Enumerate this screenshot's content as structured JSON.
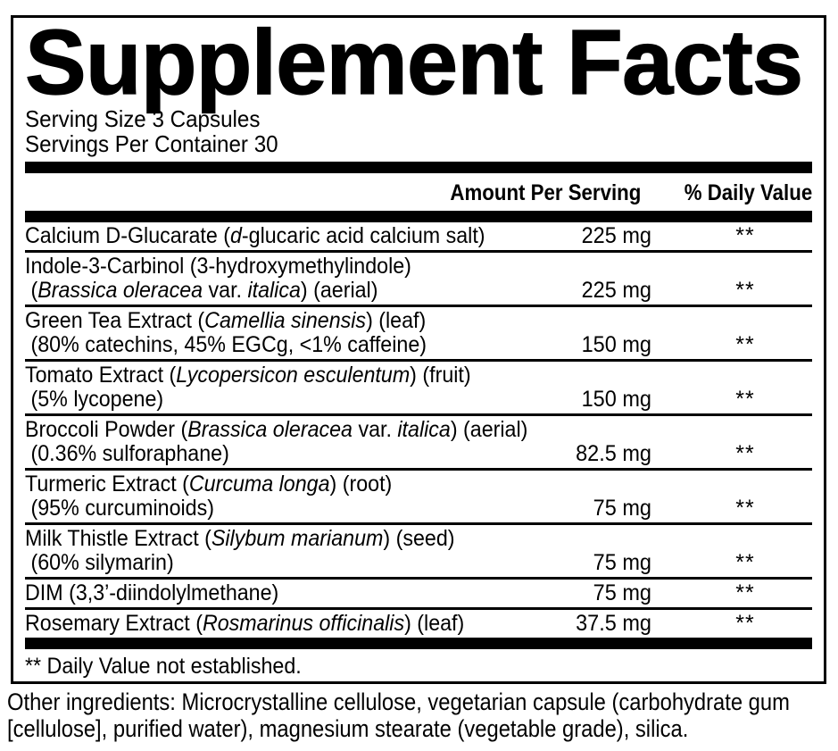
{
  "panel": {
    "title": "Supplement Facts",
    "serving": {
      "size": "Serving Size 3 Capsules",
      "per_container": "Servings Per Container 30"
    },
    "header": {
      "amount": "Amount Per Serving",
      "daily_value": "% Daily Value"
    },
    "rows": [
      {
        "lines": [
          [
            {
              "t": "Calcium D-Glucarate ("
            },
            {
              "t": "d",
              "it": true
            },
            {
              "t": "-glucaric acid calcium salt)"
            }
          ]
        ],
        "amount": "225 mg",
        "dv": "**"
      },
      {
        "lines": [
          [
            {
              "t": "Indole-3-Carbinol (3-hydroxymethylindole)"
            }
          ],
          [
            {
              "t": "("
            },
            {
              "t": "Brassica oleracea",
              "it": true
            },
            {
              "t": " var. "
            },
            {
              "t": "italica",
              "it": true
            },
            {
              "t": ") (aerial)"
            }
          ]
        ],
        "amount": "225 mg",
        "dv": "**"
      },
      {
        "lines": [
          [
            {
              "t": "Green Tea Extract ("
            },
            {
              "t": "Camellia sinensis",
              "it": true
            },
            {
              "t": ") (leaf)"
            }
          ],
          [
            {
              "t": "(80% catechins, 45% EGCg, <1% caffeine)"
            }
          ]
        ],
        "amount": "150 mg",
        "dv": "**"
      },
      {
        "lines": [
          [
            {
              "t": "Tomato Extract ("
            },
            {
              "t": "Lycopersicon esculentum",
              "it": true
            },
            {
              "t": ") (fruit)"
            }
          ],
          [
            {
              "t": "(5% lycopene)"
            }
          ]
        ],
        "amount": "150 mg",
        "dv": "**"
      },
      {
        "lines": [
          [
            {
              "t": "Broccoli Powder ("
            },
            {
              "t": "Brassica oleracea",
              "it": true
            },
            {
              "t": " var. "
            },
            {
              "t": "italica",
              "it": true
            },
            {
              "t": ") (aerial)"
            }
          ],
          [
            {
              "t": "(0.36% sulforaphane)"
            }
          ]
        ],
        "amount": "82.5 mg",
        "dv": "**"
      },
      {
        "lines": [
          [
            {
              "t": "Turmeric Extract ("
            },
            {
              "t": "Curcuma longa",
              "it": true
            },
            {
              "t": ") (root)"
            }
          ],
          [
            {
              "t": "(95% curcuminoids)"
            }
          ]
        ],
        "amount": "75 mg",
        "dv": "**"
      },
      {
        "lines": [
          [
            {
              "t": "Milk Thistle Extract ("
            },
            {
              "t": "Silybum marianum",
              "it": true
            },
            {
              "t": ") (seed)"
            }
          ],
          [
            {
              "t": "(60% silymarin)"
            }
          ]
        ],
        "amount": "75 mg",
        "dv": "**"
      },
      {
        "lines": [
          [
            {
              "t": "DIM (3,3’-diindolylmethane)"
            }
          ]
        ],
        "amount": "75 mg",
        "dv": "**"
      },
      {
        "lines": [
          [
            {
              "t": "Rosemary Extract ("
            },
            {
              "t": "Rosmarinus officinalis",
              "it": true
            },
            {
              "t": ") (leaf)"
            }
          ]
        ],
        "amount": "37.5 mg",
        "dv": "**"
      }
    ],
    "footnote": "** Daily Value not established."
  },
  "other_ingredients": {
    "lines": [
      "Other ingredients: Microcrystalline cellulose, vegetarian capsule (carbohydrate gum",
      "[cellulose], purified water), magnesium stearate (vegetable grade), silica."
    ]
  },
  "colors": {
    "text": "#000000",
    "background": "#ffffff"
  }
}
